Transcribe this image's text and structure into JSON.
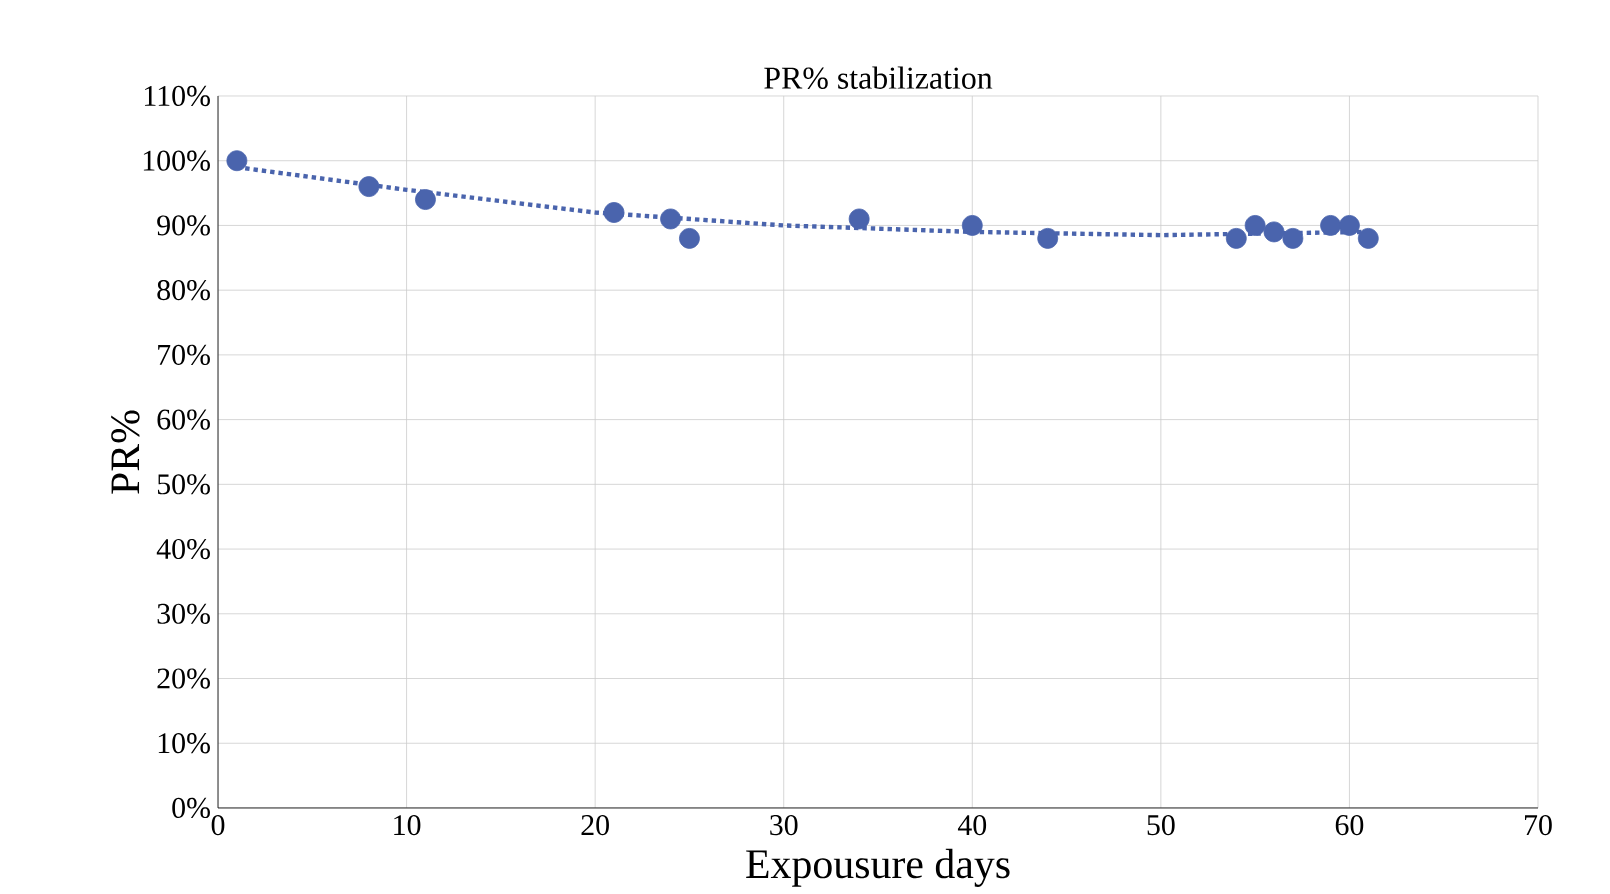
{
  "chart_data": {
    "type": "scatter",
    "title": "PR% stabilization",
    "xlabel": "Expousure days",
    "ylabel": "PR%",
    "xlim": [
      0,
      70
    ],
    "xticks": [
      0,
      10,
      20,
      30,
      40,
      50,
      60,
      70
    ],
    "ylim": [
      0,
      110
    ],
    "yticks": [
      {
        "value": 0,
        "label": "0%"
      },
      {
        "value": 10,
        "label": "10%"
      },
      {
        "value": 20,
        "label": "20%"
      },
      {
        "value": 30,
        "label": "30%"
      },
      {
        "value": 40,
        "label": "40%"
      },
      {
        "value": 50,
        "label": "50%"
      },
      {
        "value": 60,
        "label": "60%"
      },
      {
        "value": 70,
        "label": "70%"
      },
      {
        "value": 80,
        "label": "80%"
      },
      {
        "value": 90,
        "label": "90%"
      },
      {
        "value": 100,
        "label": "100%"
      },
      {
        "value": 110,
        "label": "110%"
      }
    ],
    "grid": true,
    "marker": "circle",
    "series": [
      {
        "color": "#4a64ad",
        "x": [
          1,
          8,
          11,
          21,
          24,
          25,
          34,
          40,
          44,
          54,
          55,
          56,
          57,
          59,
          60,
          61
        ],
        "values": [
          100,
          96,
          94,
          92,
          91,
          88,
          91,
          90,
          88,
          88,
          90,
          89,
          88,
          90,
          90,
          88
        ]
      },
      {
        "type": "line",
        "line_style": "dotted",
        "marker": "none",
        "color": "#4a64ad",
        "x": [
          1,
          10,
          20,
          30,
          40,
          50,
          61
        ],
        "values": [
          99,
          95.5,
          92,
          90,
          89,
          88.5,
          89
        ]
      }
    ]
  }
}
